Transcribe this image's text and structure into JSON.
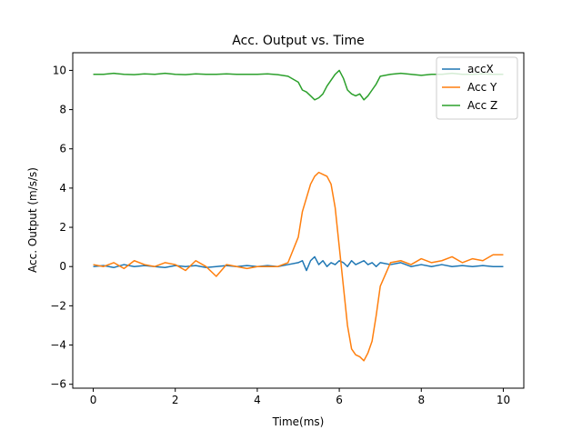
{
  "chart_data": {
    "type": "line",
    "title": "Acc. Output vs. Time",
    "xlabel": "Time(ms)",
    "ylabel": "Acc. Output (m/s/s)",
    "xlim": [
      -0.5,
      10.5
    ],
    "ylim": [
      -6.2,
      10.9
    ],
    "xticks": [
      0,
      2,
      4,
      6,
      8,
      10
    ],
    "yticks": [
      -6,
      -4,
      -2,
      0,
      2,
      4,
      6,
      8,
      10
    ],
    "grid": false,
    "legend_position": "top-right",
    "x": [
      0,
      0.25,
      0.5,
      0.75,
      1,
      1.25,
      1.5,
      1.75,
      2,
      2.25,
      2.5,
      2.75,
      3,
      3.25,
      3.5,
      3.75,
      4,
      4.25,
      4.5,
      4.75,
      5,
      5.1,
      5.2,
      5.3,
      5.4,
      5.5,
      5.6,
      5.7,
      5.8,
      5.9,
      6,
      6.1,
      6.2,
      6.3,
      6.4,
      6.5,
      6.6,
      6.7,
      6.8,
      6.9,
      7,
      7.25,
      7.5,
      7.75,
      8,
      8.25,
      8.5,
      8.75,
      9,
      9.25,
      9.5,
      9.75,
      10
    ],
    "series": [
      {
        "name": "accX",
        "color": "#1f77b4",
        "values": [
          0.0,
          0.05,
          -0.05,
          0.1,
          0.0,
          0.05,
          0.0,
          -0.05,
          0.05,
          0.0,
          0.05,
          -0.05,
          0.0,
          0.05,
          0.0,
          0.05,
          0.0,
          0.05,
          0.0,
          0.1,
          0.2,
          0.3,
          -0.2,
          0.3,
          0.5,
          0.1,
          0.3,
          0.0,
          0.2,
          0.1,
          0.3,
          0.2,
          0.0,
          0.3,
          0.1,
          0.2,
          0.3,
          0.1,
          0.2,
          0.0,
          0.2,
          0.1,
          0.2,
          0.0,
          0.1,
          0.0,
          0.1,
          0.0,
          0.05,
          0.0,
          0.05,
          0.0,
          0.0
        ]
      },
      {
        "name": "Acc Y",
        "color": "#ff7f0e",
        "values": [
          0.1,
          0.0,
          0.2,
          -0.1,
          0.3,
          0.1,
          0.0,
          0.2,
          0.1,
          -0.2,
          0.3,
          0.0,
          -0.5,
          0.1,
          0.0,
          -0.1,
          0.0,
          0.0,
          0.0,
          0.2,
          1.5,
          2.8,
          3.5,
          4.2,
          4.6,
          4.8,
          4.7,
          4.6,
          4.2,
          3.0,
          1.0,
          -1.0,
          -3.0,
          -4.2,
          -4.5,
          -4.6,
          -4.8,
          -4.4,
          -3.8,
          -2.5,
          -1.0,
          0.2,
          0.3,
          0.1,
          0.4,
          0.2,
          0.3,
          0.5,
          0.2,
          0.4,
          0.3,
          0.6,
          0.6
        ]
      },
      {
        "name": "Acc Z",
        "color": "#2ca02c",
        "values": [
          9.8,
          9.8,
          9.85,
          9.8,
          9.78,
          9.82,
          9.8,
          9.85,
          9.8,
          9.78,
          9.82,
          9.8,
          9.8,
          9.82,
          9.8,
          9.8,
          9.8,
          9.82,
          9.78,
          9.7,
          9.4,
          9.0,
          8.9,
          8.7,
          8.5,
          8.6,
          8.8,
          9.2,
          9.5,
          9.8,
          10.0,
          9.6,
          9.0,
          8.8,
          8.7,
          8.8,
          8.5,
          8.7,
          9.0,
          9.3,
          9.7,
          9.8,
          9.85,
          9.8,
          9.75,
          9.8,
          9.8,
          9.85,
          9.8,
          9.8,
          9.82,
          9.8,
          9.8
        ]
      }
    ]
  }
}
